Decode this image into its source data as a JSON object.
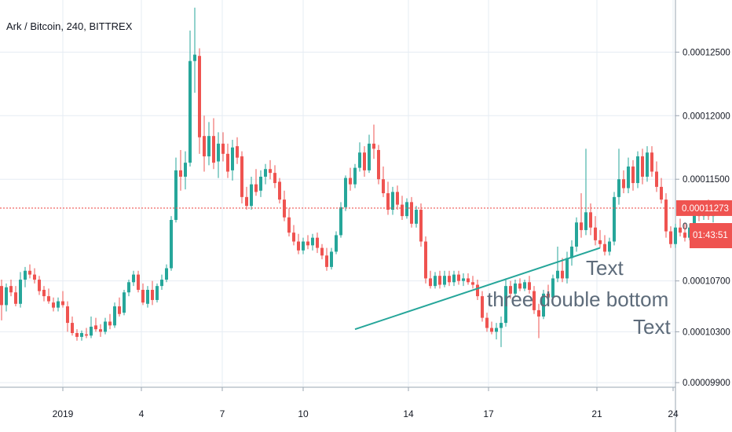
{
  "header": {
    "symbol_title": "Ark / Bitcoin, 240, BITTREX"
  },
  "chart_data": {
    "type": "candlestick",
    "title": "Ark / Bitcoin, 240, BITTREX",
    "x_tick_labels": [
      "2019",
      "4",
      "7",
      "10",
      "14",
      "17",
      "21",
      "24"
    ],
    "y_tick_labels": [
      "0.00012500",
      "0.00012000",
      "0.00011500",
      "0.00010700",
      "0.00010300",
      "0.00009900"
    ],
    "y_tick_values": [
      0.000125,
      0.00012,
      0.000115,
      0.000107,
      0.000103,
      9.9e-05
    ],
    "y_range": [
      9.87e-05,
      0.0001291
    ],
    "last_price": {
      "label": "0.00011273",
      "value": 0.00011273,
      "color": "#ef5350"
    },
    "countdown": {
      "label": "01:43:51",
      "color": "#ef5350"
    },
    "partial_axis_label": "0.",
    "colors": {
      "up": "#26a69a",
      "down": "#ef5350",
      "grid": "#e6ecf3",
      "axis_text": "#131722",
      "trendline": "#26a69a",
      "annotation": "#5d6b7a"
    },
    "annotations": [
      {
        "text": "Text"
      },
      {
        "text": "three double bottom"
      },
      {
        "text": "Text"
      }
    ],
    "trendline": {
      "from": {
        "bar": 75,
        "price": 0.0001032
      },
      "to": {
        "bar": 127,
        "price": 0.0001096
      }
    },
    "candles": [
      [
        0.0001066,
        0.0001071,
        0.0001039,
        0.0001051
      ],
      [
        0.0001051,
        0.0001068,
        0.0001046,
        0.0001065
      ],
      [
        0.0001066,
        0.0001071,
        0.0001058,
        0.0001061
      ],
      [
        0.0001061,
        0.0001066,
        0.000105,
        0.0001052
      ],
      [
        0.0001052,
        0.0001077,
        0.0001049,
        0.0001071
      ],
      [
        0.0001071,
        0.0001081,
        0.0001065,
        0.0001078
      ],
      [
        0.0001078,
        0.0001083,
        0.0001072,
        0.0001075
      ],
      [
        0.0001075,
        0.000108,
        0.0001068,
        0.0001071
      ],
      [
        0.0001071,
        0.0001074,
        0.0001059,
        0.0001062
      ],
      [
        0.0001063,
        0.0001066,
        0.0001054,
        0.0001058
      ],
      [
        0.0001058,
        0.0001064,
        0.0001052,
        0.0001054
      ],
      [
        0.0001053,
        0.0001057,
        0.0001046,
        0.0001049
      ],
      [
        0.0001049,
        0.0001057,
        0.0001046,
        0.0001054
      ],
      [
        0.0001054,
        0.0001062,
        0.0001049,
        0.0001051
      ],
      [
        0.000105,
        0.0001054,
        0.000103,
        0.0001037
      ],
      [
        0.0001037,
        0.0001042,
        0.0001027,
        0.0001029
      ],
      [
        0.0001029,
        0.0001032,
        0.0001023,
        0.0001026
      ],
      [
        0.0001026,
        0.0001031,
        0.0001023,
        0.0001029
      ],
      [
        0.0001028,
        0.0001033,
        0.0001025,
        0.0001027
      ],
      [
        0.0001027,
        0.0001042,
        0.0001025,
        0.0001034
      ],
      [
        0.0001035,
        0.0001041,
        0.000103,
        0.0001032
      ],
      [
        0.0001032,
        0.0001036,
        0.0001026,
        0.000103
      ],
      [
        0.000103,
        0.0001041,
        0.0001028,
        0.0001038
      ],
      [
        0.0001038,
        0.0001044,
        0.0001032,
        0.0001035
      ],
      [
        0.0001035,
        0.0001053,
        0.0001033,
        0.000105
      ],
      [
        0.000105,
        0.0001057,
        0.0001042,
        0.0001044
      ],
      [
        0.0001045,
        0.0001063,
        0.0001043,
        0.0001061
      ],
      [
        0.0001061,
        0.0001071,
        0.0001058,
        0.0001069
      ],
      [
        0.0001069,
        0.0001078,
        0.0001066,
        0.0001075
      ],
      [
        0.0001075,
        0.0001078,
        0.0001061,
        0.0001063
      ],
      [
        0.0001063,
        0.0001068,
        0.0001051,
        0.0001053
      ],
      [
        0.0001052,
        0.0001066,
        0.0001049,
        0.0001063
      ],
      [
        0.0001063,
        0.000107,
        0.0001051,
        0.0001055
      ],
      [
        0.0001055,
        0.0001068,
        0.0001053,
        0.0001066
      ],
      [
        0.0001066,
        0.0001075,
        0.0001063,
        0.0001071
      ],
      [
        0.0001071,
        0.0001083,
        0.0001069,
        0.000108
      ],
      [
        0.000108,
        0.0001121,
        0.0001078,
        0.0001118
      ],
      [
        0.0001118,
        0.0001167,
        0.0001116,
        0.0001157
      ],
      [
        0.0001157,
        0.0001173,
        0.0001141,
        0.0001152
      ],
      [
        0.0001152,
        0.0001172,
        0.0001142,
        0.0001163
      ],
      [
        0.0001163,
        0.0001267,
        0.000116,
        0.0001243
      ],
      [
        0.0001243,
        0.0001285,
        0.0001218,
        0.0001248
      ],
      [
        0.0001247,
        0.0001253,
        0.000117,
        0.0001183
      ],
      [
        0.0001184,
        0.00012,
        0.0001156,
        0.0001168
      ],
      [
        0.0001168,
        0.0001195,
        0.0001161,
        0.0001184
      ],
      [
        0.0001184,
        0.0001198,
        0.0001158,
        0.0001163
      ],
      [
        0.0001164,
        0.0001187,
        0.0001151,
        0.0001178
      ],
      [
        0.0001178,
        0.0001187,
        0.0001164,
        0.000117
      ],
      [
        0.000117,
        0.0001178,
        0.0001151,
        0.0001156
      ],
      [
        0.0001157,
        0.0001181,
        0.0001149,
        0.0001175
      ],
      [
        0.0001176,
        0.0001183,
        0.0001162,
        0.0001167
      ],
      [
        0.0001168,
        0.0001172,
        0.0001131,
        0.0001136
      ],
      [
        0.0001136,
        0.0001144,
        0.0001126,
        0.0001129
      ],
      [
        0.0001129,
        0.0001152,
        0.0001126,
        0.0001146
      ],
      [
        0.0001146,
        0.0001158,
        0.0001137,
        0.000114
      ],
      [
        0.0001141,
        0.0001157,
        0.0001136,
        0.0001152
      ],
      [
        0.0001152,
        0.0001162,
        0.0001146,
        0.0001158
      ],
      [
        0.0001158,
        0.0001165,
        0.000115,
        0.0001155
      ],
      [
        0.0001155,
        0.0001161,
        0.0001143,
        0.0001147
      ],
      [
        0.0001148,
        0.0001151,
        0.0001131,
        0.0001134
      ],
      [
        0.0001134,
        0.0001141,
        0.0001117,
        0.000112
      ],
      [
        0.000112,
        0.0001127,
        0.0001105,
        0.0001108
      ],
      [
        0.0001108,
        0.0001114,
        0.0001098,
        0.0001101
      ],
      [
        0.0001101,
        0.0001107,
        0.0001091,
        0.0001094
      ],
      [
        0.0001094,
        0.0001104,
        0.0001091,
        0.0001101
      ],
      [
        0.0001101,
        0.0001106,
        0.0001095,
        0.0001098
      ],
      [
        0.0001098,
        0.0001107,
        0.0001094,
        0.0001104
      ],
      [
        0.0001104,
        0.0001108,
        0.0001092,
        0.0001096
      ],
      [
        0.0001096,
        0.0001099,
        0.0001087,
        0.000109
      ],
      [
        0.000109,
        0.0001096,
        0.0001078,
        0.0001081
      ],
      [
        0.0001081,
        0.0001096,
        0.0001079,
        0.0001093
      ],
      [
        0.0001093,
        0.0001109,
        0.0001091,
        0.0001106
      ],
      [
        0.0001106,
        0.0001132,
        0.0001104,
        0.0001128
      ],
      [
        0.0001128,
        0.0001153,
        0.0001125,
        0.0001151
      ],
      [
        0.0001151,
        0.0001159,
        0.0001141,
        0.0001146
      ],
      [
        0.0001146,
        0.0001162,
        0.0001143,
        0.0001159
      ],
      [
        0.0001159,
        0.0001179,
        0.0001156,
        0.0001171
      ],
      [
        0.0001171,
        0.0001176,
        0.0001152,
        0.0001157
      ],
      [
        0.0001157,
        0.0001185,
        0.0001155,
        0.0001178
      ],
      [
        0.0001178,
        0.0001193,
        0.0001166,
        0.0001174
      ],
      [
        0.0001173,
        0.0001177,
        0.0001146,
        0.000115
      ],
      [
        0.000115,
        0.000116,
        0.0001136,
        0.0001139
      ],
      [
        0.0001139,
        0.0001148,
        0.0001122,
        0.0001126
      ],
      [
        0.0001126,
        0.0001144,
        0.0001122,
        0.000114
      ],
      [
        0.000114,
        0.0001145,
        0.0001126,
        0.000113
      ],
      [
        0.000113,
        0.0001137,
        0.0001118,
        0.0001121
      ],
      [
        0.0001121,
        0.0001135,
        0.0001119,
        0.0001132
      ],
      [
        0.0001132,
        0.0001136,
        0.0001112,
        0.0001115
      ],
      [
        0.0001115,
        0.0001129,
        0.0001112,
        0.0001126
      ],
      [
        0.0001126,
        0.0001131,
        0.0001097,
        0.0001101
      ],
      [
        0.0001101,
        0.0001105,
        0.0001068,
        0.0001072
      ],
      [
        0.0001072,
        0.0001078,
        0.0001064,
        0.0001066
      ],
      [
        0.0001066,
        0.0001077,
        0.0001064,
        0.0001074
      ],
      [
        0.0001074,
        0.0001078,
        0.0001064,
        0.0001067
      ],
      [
        0.0001067,
        0.0001078,
        0.0001065,
        0.0001074
      ],
      [
        0.0001074,
        0.0001078,
        0.0001066,
        0.0001069
      ],
      [
        0.0001069,
        0.0001078,
        0.0001066,
        0.0001075
      ],
      [
        0.0001075,
        0.0001078,
        0.0001067,
        0.000107
      ],
      [
        0.000107,
        0.0001076,
        0.0001066,
        0.0001072
      ],
      [
        0.0001072,
        0.0001076,
        0.0001067,
        0.0001069
      ],
      [
        0.0001069,
        0.0001074,
        0.0001064,
        0.0001067
      ],
      [
        0.0001067,
        0.0001071,
        0.0001055,
        0.0001058
      ],
      [
        0.0001058,
        0.0001062,
        0.0001038,
        0.0001041
      ],
      [
        0.0001041,
        0.0001045,
        0.000103,
        0.0001033
      ],
      [
        0.0001033,
        0.0001038,
        0.0001028,
        0.000103
      ],
      [
        0.000103,
        0.0001037,
        0.0001024,
        0.0001033
      ],
      [
        0.0001033,
        0.0001042,
        0.0001018,
        0.0001037
      ],
      [
        0.0001037,
        0.0001072,
        0.0001034,
        0.0001066
      ],
      [
        0.0001066,
        0.000107,
        0.0001056,
        0.000106
      ],
      [
        0.000106,
        0.0001071,
        0.0001058,
        0.0001068
      ],
      [
        0.0001068,
        0.0001072,
        0.0001062,
        0.0001064
      ],
      [
        0.0001064,
        0.0001071,
        0.0001062,
        0.0001069
      ],
      [
        0.0001069,
        0.0001074,
        0.000106,
        0.0001063
      ],
      [
        0.0001062,
        0.0001066,
        0.0001044,
        0.0001047
      ],
      [
        0.0001047,
        0.0001052,
        0.0001025,
        0.0001042
      ],
      [
        0.0001042,
        0.0001063,
        0.000104,
        0.000106
      ],
      [
        0.000106,
        0.0001067,
        0.0001053,
        0.0001057
      ],
      [
        0.0001057,
        0.0001075,
        0.0001055,
        0.0001072
      ],
      [
        0.0001072,
        0.0001097,
        0.0001069,
        0.0001078
      ],
      [
        0.0001078,
        0.0001088,
        0.0001069,
        0.0001072
      ],
      [
        0.0001072,
        0.0001093,
        0.0001068,
        0.0001088
      ],
      [
        0.0001088,
        0.0001102,
        0.0001082,
        0.0001097
      ],
      [
        0.0001097,
        0.000112,
        0.0001093,
        0.0001116
      ],
      [
        0.0001116,
        0.0001139,
        0.0001104,
        0.000111
      ],
      [
        0.000111,
        0.0001174,
        0.0001106,
        0.0001124
      ],
      [
        0.0001124,
        0.0001131,
        0.0001106,
        0.0001112
      ],
      [
        0.0001112,
        0.0001121,
        0.0001098,
        0.0001102
      ],
      [
        0.0001102,
        0.000111,
        0.0001096,
        0.0001099
      ],
      [
        0.0001099,
        0.0001106,
        0.000109,
        0.0001093
      ],
      [
        0.0001093,
        0.0001104,
        0.000109,
        0.0001101
      ],
      [
        0.0001101,
        0.000114,
        0.0001098,
        0.0001136
      ],
      [
        0.0001136,
        0.0001174,
        0.000113,
        0.000115
      ],
      [
        0.000115,
        0.0001157,
        0.0001139,
        0.0001143
      ],
      [
        0.0001143,
        0.0001167,
        0.0001139,
        0.000116
      ],
      [
        0.000116,
        0.0001165,
        0.0001141,
        0.0001147
      ],
      [
        0.0001147,
        0.0001172,
        0.0001143,
        0.0001168
      ],
      [
        0.0001168,
        0.0001174,
        0.0001146,
        0.0001152
      ],
      [
        0.0001152,
        0.0001176,
        0.0001148,
        0.0001171
      ],
      [
        0.0001171,
        0.0001176,
        0.0001152,
        0.0001156
      ],
      [
        0.0001156,
        0.0001164,
        0.000114,
        0.0001144
      ],
      [
        0.0001144,
        0.0001151,
        0.0001131,
        0.0001134
      ],
      [
        0.0001134,
        0.0001139,
        0.0001104,
        0.0001109
      ],
      [
        0.0001109,
        0.0001113,
        0.0001096,
        0.0001099
      ],
      [
        0.0001099,
        0.0001115,
        0.0001096,
        0.0001112
      ],
      [
        0.0001112,
        0.0001119,
        0.0001105,
        0.0001108
      ],
      [
        0.0001108,
        0.0001115,
        0.0001101,
        0.0001104
      ],
      [
        0.0001104,
        0.0001115,
        0.0001102,
        0.0001112
      ],
      [
        0.0001112,
        0.0001129,
        0.0001109,
        0.0001125
      ],
      [
        0.0001125,
        0.0001131,
        0.0001117,
        0.0001121
      ],
      [
        0.0001121,
        0.0001133,
        0.0001118,
        0.0001129
      ],
      [
        0.0001129,
        0.0001134,
        0.0001118,
        0.0001121
      ],
      [
        0.0001121,
        0.0001129,
        0.0001116,
        0.0001127
      ]
    ]
  }
}
